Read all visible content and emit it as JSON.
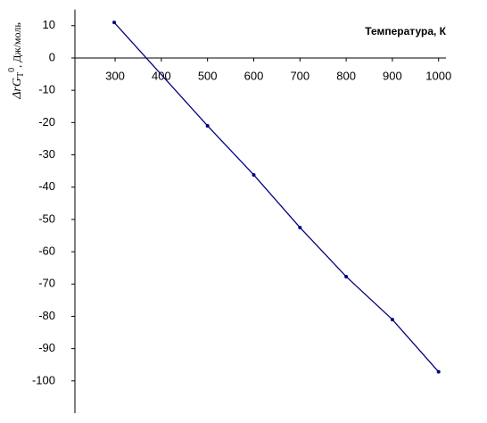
{
  "chart_data": {
    "type": "line",
    "title": "Температура, К",
    "ylabel": {
      "symbol": "ΔrG",
      "sub": "T",
      "sup": "0",
      "unit": ", Дж/моль"
    },
    "x": [
      298,
      500,
      600,
      700,
      800,
      900,
      1000
    ],
    "series": [
      {
        "color": "#000080",
        "values": [
          11,
          -21,
          -36.2,
          -52.5,
          -67.7,
          -81,
          -97.2
        ]
      }
    ],
    "xlim": [
      213,
      1016
    ],
    "xticks": [
      300,
      400,
      500,
      600,
      700,
      800,
      900,
      1000
    ],
    "ylim": [
      -110,
      15
    ],
    "yticks": [
      10,
      0,
      -10,
      -20,
      -30,
      -40,
      -50,
      -60,
      -70,
      -80,
      -90,
      -100
    ]
  }
}
